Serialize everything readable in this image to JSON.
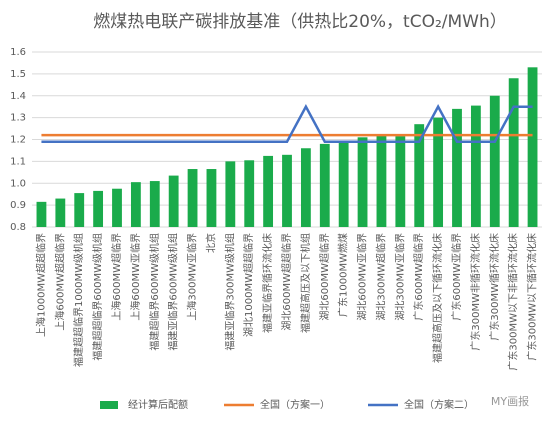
{
  "chart_data": {
    "type": "bar",
    "title": "燃煤热电联产碳排放基准（供热比20%，tCO₂/MWh）",
    "categories": [
      "上海1000MW超超临界",
      "上海600MW超超临界",
      "福建超超临界1000MW级机组",
      "福建超超临界600MW级机组",
      "上海600MW超临界",
      "上海600MW亚临界",
      "福建超临界600MW级机组",
      "福建亚临界600MW级机组",
      "上海300MW亚临界",
      "北京",
      "福建亚临界300MW级机组",
      "湖北1000MW超超临界",
      "福建亚临界循环流化床",
      "湖北600MW超超临界",
      "福建超高压及以下机组",
      "湖北600MW超临界",
      "广东1000MW燃煤",
      "湖北600MW亚临界",
      "湖北300MW超临界",
      "湖北300MW亚临界",
      "广东600MW超临界",
      "福建超高压及以下循环流化床",
      "广东600MW亚临界",
      "广东300MW非循环流化床",
      "广东300MW循环流化床",
      "广东300MW以下非循环流化床",
      "广东300MW以下循环流化床"
    ],
    "series": [
      {
        "name": "经计算后配额",
        "type": "bar",
        "color": "#1aab4b",
        "values": [
          0.915,
          0.93,
          0.955,
          0.965,
          0.975,
          1.005,
          1.01,
          1.035,
          1.065,
          1.065,
          1.1,
          1.105,
          1.125,
          1.13,
          1.16,
          1.18,
          1.185,
          1.21,
          1.22,
          1.215,
          1.27,
          1.3,
          1.34,
          1.355,
          1.4,
          1.48,
          1.53
        ]
      },
      {
        "name": "全国（方案一）",
        "type": "line",
        "color": "#ed7d31",
        "values": [
          1.22,
          1.22,
          1.22,
          1.22,
          1.22,
          1.22,
          1.22,
          1.22,
          1.22,
          1.22,
          1.22,
          1.22,
          1.22,
          1.22,
          1.22,
          1.22,
          1.22,
          1.22,
          1.22,
          1.22,
          1.22,
          1.22,
          1.22,
          1.22,
          1.22,
          1.22,
          1.22
        ]
      },
      {
        "name": "全国（方案二）",
        "type": "line",
        "color": "#4472c4",
        "values": [
          1.19,
          1.19,
          1.19,
          1.19,
          1.19,
          1.19,
          1.19,
          1.19,
          1.19,
          1.19,
          1.19,
          1.19,
          1.19,
          1.19,
          1.35,
          1.19,
          1.19,
          1.19,
          1.19,
          1.19,
          1.19,
          1.35,
          1.19,
          1.19,
          1.19,
          1.35,
          1.35
        ]
      }
    ],
    "ylim": [
      0.8,
      1.6
    ],
    "yticks": [
      0.8,
      0.9,
      {
        "value": 1,
        "label": "1.0"
      },
      1.1,
      1.2,
      1.3,
      1.4,
      1.5,
      1.6
    ],
    "grid": true,
    "legend": "bottom",
    "watermark": "MY画报"
  }
}
